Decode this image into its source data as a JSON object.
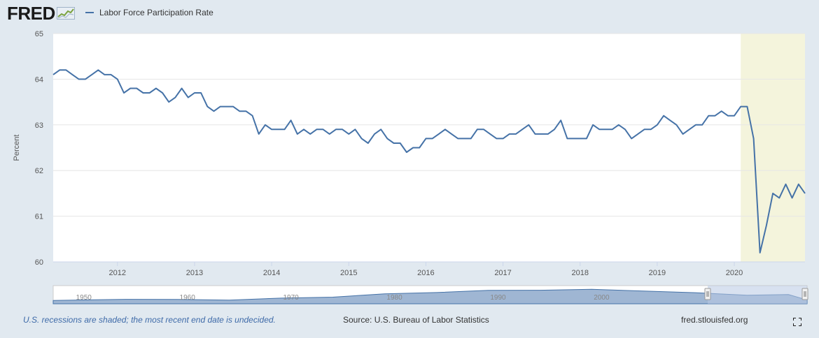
{
  "header": {
    "logo_text": "FRED",
    "legend_label": "Labor Force Participation Rate"
  },
  "footer": {
    "note": "U.S. recessions are shaded; the most recent end date is undecided.",
    "source": "Source: U.S. Bureau of Labor Statistics",
    "site": "fred.stlouisfed.org"
  },
  "colors": {
    "line": "#4572a7",
    "recession": "#f4f4dc",
    "background": "#e1e9f0",
    "plot": "#ffffff",
    "navigator_fill": "#7f9dc4",
    "navigator_selected": "#b8c9e3",
    "note": "#3e6aa8"
  },
  "icons": {
    "logo": "fred-chart-icon",
    "fullscreen": "fullscreen-icon"
  },
  "chart_data": {
    "type": "line",
    "ylabel": "Percent",
    "xlabel": "",
    "ylim": [
      60,
      65
    ],
    "yticks": [
      60,
      61,
      62,
      63,
      64,
      65
    ],
    "xlim": [
      "2011-03",
      "2020-12"
    ],
    "xticks": [
      "2012",
      "2013",
      "2014",
      "2015",
      "2016",
      "2017",
      "2018",
      "2019",
      "2020"
    ],
    "recession": {
      "start": "2020-02",
      "end": "2020-12"
    },
    "navigator_ticks": [
      "1950",
      "1960",
      "1970",
      "1980",
      "1990",
      "2000"
    ],
    "series": [
      {
        "name": "Labor Force Participation Rate",
        "start": "2011-03",
        "frequency": "monthly",
        "values": [
          64.1,
          64.2,
          64.2,
          64.1,
          64.0,
          64.0,
          64.1,
          64.2,
          64.1,
          64.1,
          64.0,
          63.7,
          63.8,
          63.8,
          63.7,
          63.7,
          63.8,
          63.7,
          63.5,
          63.6,
          63.8,
          63.6,
          63.7,
          63.7,
          63.4,
          63.3,
          63.4,
          63.4,
          63.4,
          63.3,
          63.3,
          63.2,
          62.8,
          63.0,
          62.9,
          62.9,
          62.9,
          63.1,
          62.8,
          62.9,
          62.8,
          62.9,
          62.9,
          62.8,
          62.9,
          62.9,
          62.8,
          62.9,
          62.7,
          62.6,
          62.8,
          62.9,
          62.7,
          62.6,
          62.6,
          62.4,
          62.5,
          62.5,
          62.7,
          62.7,
          62.8,
          62.9,
          62.8,
          62.7,
          62.7,
          62.7,
          62.9,
          62.9,
          62.8,
          62.7,
          62.7,
          62.8,
          62.8,
          62.9,
          63.0,
          62.8,
          62.8,
          62.8,
          62.9,
          63.1,
          62.7,
          62.7,
          62.7,
          62.7,
          63.0,
          62.9,
          62.9,
          62.9,
          63.0,
          62.9,
          62.7,
          62.8,
          62.9,
          62.9,
          63.0,
          63.2,
          63.1,
          63.0,
          62.8,
          62.9,
          63.0,
          63.0,
          63.2,
          63.2,
          63.3,
          63.2,
          63.2,
          63.4,
          63.4,
          62.7,
          60.2,
          60.8,
          61.5,
          61.4,
          61.7,
          61.4,
          61.7,
          61.5
        ]
      }
    ]
  }
}
